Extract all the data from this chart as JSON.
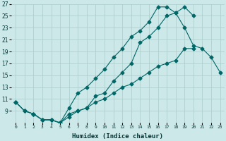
{
  "title": "",
  "xlabel": "Humidex (Indice chaleur)",
  "xlim": [
    -0.5,
    23.5
  ],
  "ylim": [
    7,
    27
  ],
  "yticks": [
    9,
    11,
    13,
    15,
    17,
    19,
    21,
    23,
    25,
    27
  ],
  "ytick_labels": [
    "9",
    "11",
    "13",
    "15",
    "17",
    "19",
    "21",
    "23",
    "25",
    "27"
  ],
  "xticks": [
    0,
    1,
    2,
    3,
    4,
    5,
    6,
    7,
    8,
    9,
    10,
    11,
    12,
    13,
    14,
    15,
    16,
    17,
    18,
    19,
    20,
    21,
    22,
    23
  ],
  "xtick_labels": [
    "0",
    "1",
    "2",
    "3",
    "4",
    "5",
    "6",
    "7",
    "8",
    "9",
    "10",
    "11",
    "12",
    "13",
    "14",
    "15",
    "16",
    "17",
    "18",
    "19",
    "20",
    "21",
    "22",
    "23"
  ],
  "bg_color": "#cce8e8",
  "grid_color": "#aacccc",
  "line_color": "#006666",
  "line1_x": [
    0,
    1,
    2,
    3,
    4,
    5,
    6,
    7,
    8,
    9,
    10,
    11,
    12,
    13,
    14,
    15,
    16,
    17,
    18,
    19,
    20,
    21,
    22,
    23
  ],
  "line1_y": [
    10.5,
    9.0,
    8.5,
    7.5,
    7.5,
    7.0,
    8.0,
    9.0,
    9.5,
    11.5,
    12.0,
    14.0,
    15.5,
    17.0,
    20.5,
    21.5,
    23.0,
    25.0,
    25.5,
    23.0,
    20.0,
    19.5,
    18.0,
    15.5
  ],
  "line2_x": [
    0,
    1,
    2,
    3,
    4,
    5,
    6,
    7,
    8,
    9,
    10,
    11,
    12,
    13,
    14,
    15,
    16,
    17,
    18,
    19,
    20
  ],
  "line2_y": [
    10.5,
    9.0,
    8.5,
    7.5,
    7.5,
    7.0,
    9.5,
    12.0,
    13.0,
    14.5,
    16.0,
    18.0,
    19.5,
    21.5,
    22.5,
    24.0,
    26.5,
    26.5,
    25.5,
    26.5,
    25.0
  ],
  "line3_x": [
    0,
    1,
    2,
    3,
    4,
    5,
    6,
    7,
    8,
    9,
    10,
    11,
    12,
    13,
    14,
    15,
    16,
    17,
    18,
    19,
    20
  ],
  "line3_y": [
    10.5,
    9.0,
    8.5,
    7.5,
    7.5,
    7.0,
    8.5,
    9.0,
    9.5,
    10.5,
    11.0,
    12.0,
    13.0,
    13.5,
    14.5,
    15.5,
    16.5,
    17.0,
    17.5,
    19.5,
    19.5
  ]
}
